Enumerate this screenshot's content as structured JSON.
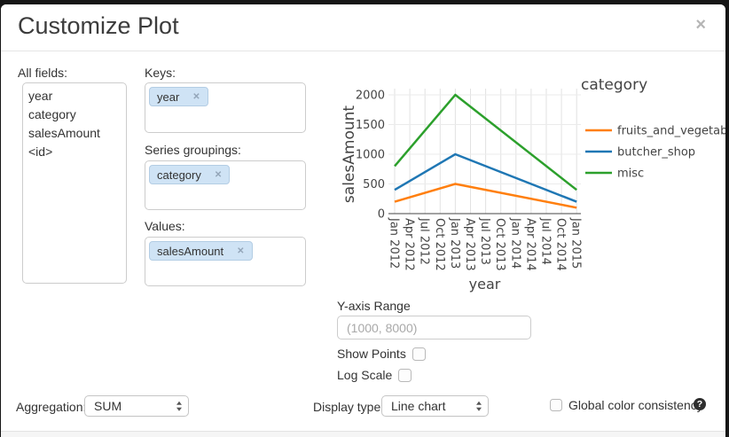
{
  "dialog": {
    "title": "Customize Plot",
    "close_icon": "×"
  },
  "panels": {
    "all_fields": {
      "label": "All fields:",
      "items": [
        "year",
        "category",
        "salesAmount",
        "<id>"
      ]
    },
    "keys": {
      "label": "Keys:",
      "tokens": [
        "year"
      ]
    },
    "series_groupings": {
      "label": "Series groupings:",
      "tokens": [
        "category"
      ]
    },
    "values": {
      "label": "Values:",
      "tokens": [
        "salesAmount"
      ]
    },
    "token_remove_icon": "✕"
  },
  "chart_data": {
    "type": "line",
    "title": "",
    "xlabel": "year",
    "ylabel": "salesAmount",
    "legend_title": "category",
    "legend_position": "right",
    "grid": true,
    "ylim": [
      0,
      2000
    ],
    "y_ticks": [
      0,
      500,
      1000,
      1500,
      2000
    ],
    "x_tick_labels": [
      "Jan 2012",
      "Apr 2012",
      "Jul 2012",
      "Oct 2012",
      "Jan 2013",
      "Apr 2013",
      "Jul 2013",
      "Oct 2013",
      "Jan 2014",
      "Apr 2014",
      "Jul 2014",
      "Oct 2014",
      "Jan 2015"
    ],
    "series": [
      {
        "name": "fruits_and_vegetables",
        "color": "#ff7f0e",
        "points": [
          {
            "x": "Jan 2012",
            "y": 200
          },
          {
            "x": "Jan 2013",
            "y": 500
          },
          {
            "x": "Jan 2015",
            "y": 100
          }
        ]
      },
      {
        "name": "butcher_shop",
        "color": "#1f77b4",
        "points": [
          {
            "x": "Jan 2012",
            "y": 400
          },
          {
            "x": "Jan 2013",
            "y": 1000
          },
          {
            "x": "Jan 2015",
            "y": 200
          }
        ]
      },
      {
        "name": "misc",
        "color": "#2ca02c",
        "points": [
          {
            "x": "Jan 2012",
            "y": 800
          },
          {
            "x": "Jan 2013",
            "y": 2000
          },
          {
            "x": "Jan 2015",
            "y": 400
          }
        ]
      }
    ]
  },
  "controls": {
    "y_axis_range": {
      "label": "Y-axis Range",
      "placeholder": "(1000, 8000)",
      "value": ""
    },
    "show_points": {
      "label": "Show Points",
      "checked": false
    },
    "log_scale": {
      "label": "Log Scale",
      "checked": false
    }
  },
  "bottom_bar": {
    "aggregation": {
      "label": "Aggregation:",
      "value": "SUM"
    },
    "display_type": {
      "label": "Display type:",
      "value": "Line chart"
    },
    "global_color": {
      "label": "Global color consistency",
      "checked": false,
      "help_icon": "?"
    }
  }
}
